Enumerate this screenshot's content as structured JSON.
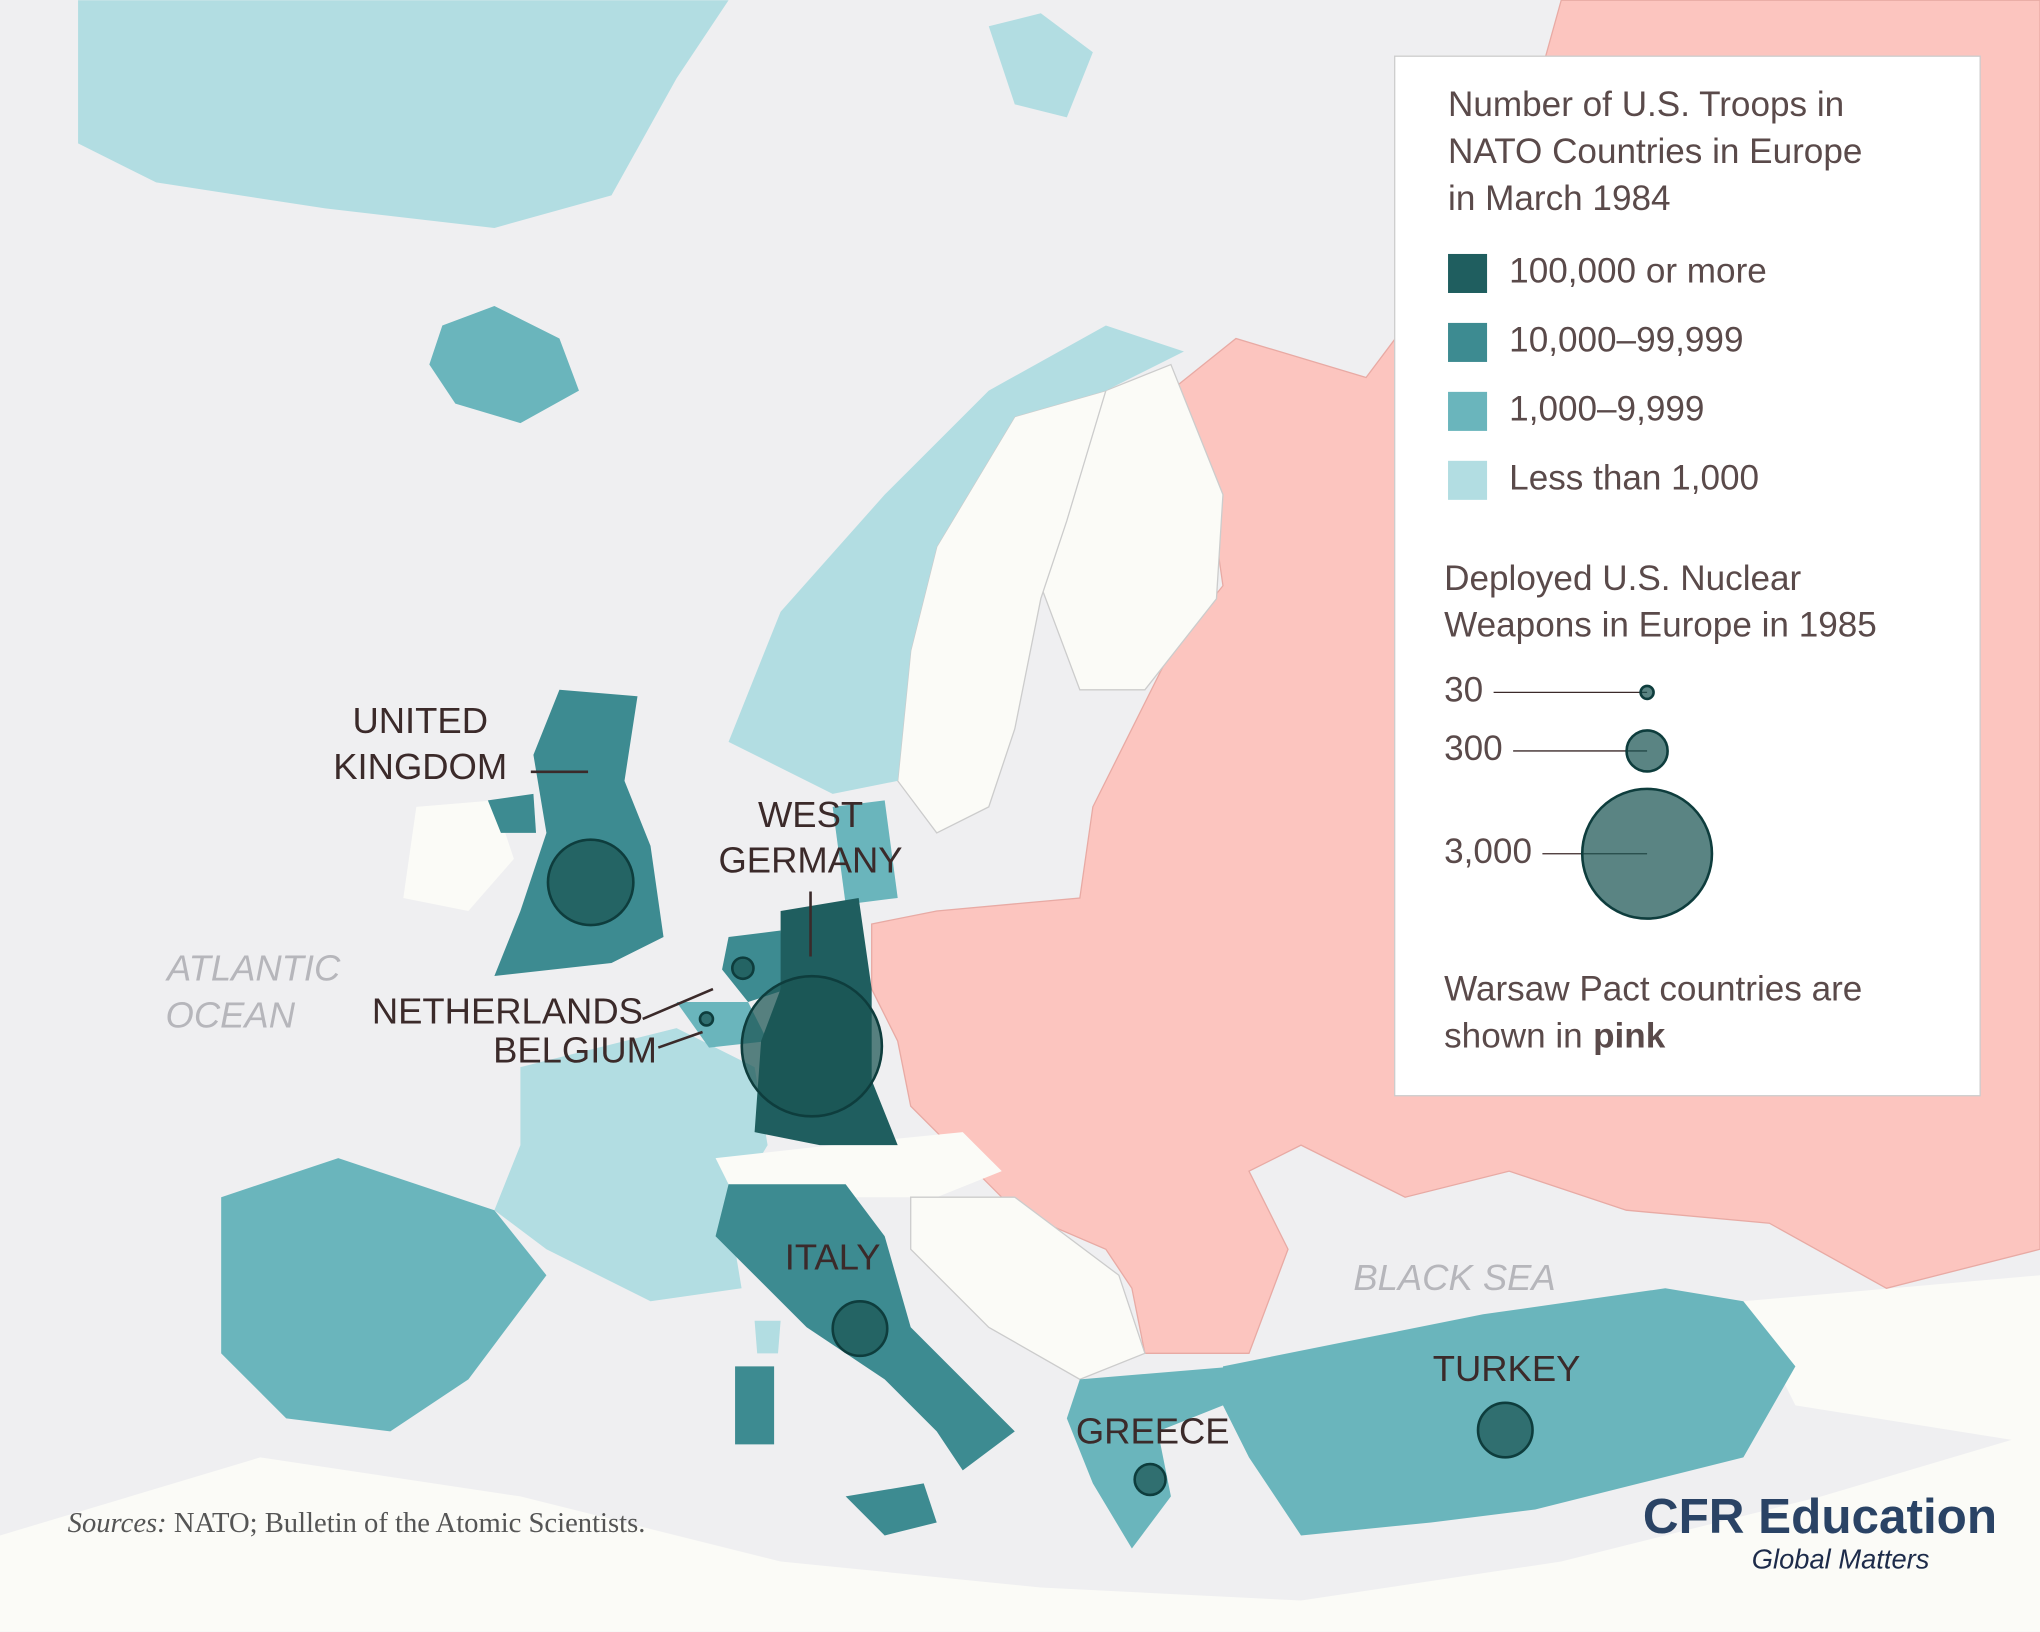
{
  "map": {
    "legend": {
      "troops_title": [
        "Number of U.S. Troops in",
        "NATO Countries in Europe",
        "in March 1984"
      ],
      "troop_levels": [
        {
          "label": "100,000 or more",
          "color": "#1f5e5f"
        },
        {
          "label": "10,000–99,999",
          "color": "#3d8b91"
        },
        {
          "label": "1,000–9,999",
          "color": "#6ab5bc"
        },
        {
          "label": "Less than 1,000",
          "color": "#b2dde2"
        }
      ],
      "nuclear_title": [
        "Deployed U.S. Nuclear",
        "Weapons in Europe in 1985"
      ],
      "nuclear_sizes": [
        30,
        300,
        {
          "value": 3000,
          "label": "3,000"
        }
      ],
      "note": "Warsaw Pact countries are shown in",
      "note_highlight": "pink"
    },
    "countries": [
      {
        "label": [
          "UNITED",
          "KINGDOM"
        ],
        "color": "#3d8b91",
        "nuclear_weapons": 1300
      },
      {
        "label": [
          "NETHERLANDS"
        ],
        "color": "#3d8b91",
        "nuclear_weapons": 80
      },
      {
        "label": [
          "BELGIUM"
        ],
        "color": "#6ab5bc",
        "nuclear_weapons": 30
      },
      {
        "label": [
          "WEST",
          "GERMANY"
        ],
        "color": "#1f5e5f",
        "nuclear_weapons": 3500
      },
      {
        "label": [
          "ITALY"
        ],
        "color": "#3d8b91",
        "nuclear_weapons": 530
      },
      {
        "label": [
          "GREECE"
        ],
        "color": "#6ab5bc",
        "nuclear_weapons": 170
      },
      {
        "label": [
          "TURKEY"
        ],
        "color": "#6ab5bc",
        "nuclear_weapons": 530
      }
    ],
    "seas": [
      "ATLANTIC",
      "OCEAN",
      "BLACK SEA"
    ],
    "sources_label": "Sources:",
    "sources_text": "NATO; Bulletin of the Atomic Scientists.",
    "logo": "CFR Education",
    "logo_tagline": "Global Matters"
  }
}
